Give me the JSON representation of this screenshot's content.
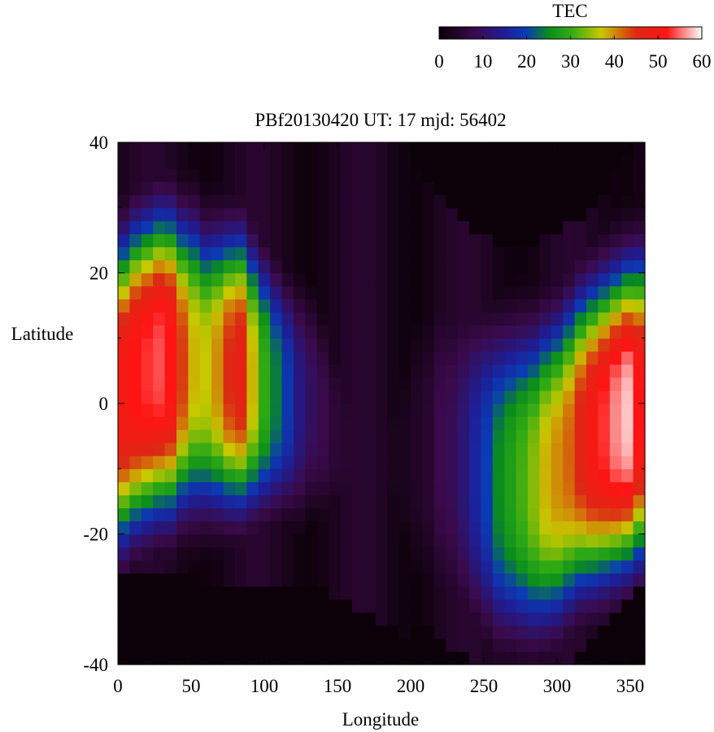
{
  "chart_data": {
    "type": "heatmap",
    "title": "PBf20130420  UT: 17  mjd: 56402",
    "xlabel": "Longitude",
    "ylabel": "Latitude",
    "xlim": [
      0,
      360
    ],
    "ylim": [
      -40,
      40
    ],
    "x_ticks": [
      "0",
      "50",
      "100",
      "150",
      "200",
      "250",
      "300",
      "350"
    ],
    "y_ticks": [
      "40",
      "20",
      "0",
      "-20",
      "-40"
    ],
    "colorbar": {
      "label": "TEC",
      "range": [
        0,
        60
      ],
      "ticks": [
        "0",
        "10",
        "20",
        "30",
        "40",
        "50",
        "60"
      ],
      "stops": [
        [
          0,
          "#0a0005"
        ],
        [
          8,
          "#3a0a4a"
        ],
        [
          15,
          "#1e1e96"
        ],
        [
          20,
          "#0a3cb4"
        ],
        [
          25,
          "#0a8c1e"
        ],
        [
          30,
          "#2faa14"
        ],
        [
          37,
          "#c8c800"
        ],
        [
          45,
          "#dc2814"
        ],
        [
          52,
          "#ff1414"
        ],
        [
          60,
          "#ffffff"
        ]
      ]
    },
    "grid": {
      "lon_step": 8,
      "lat_step": 2,
      "lon_start": 0,
      "lat_start": -40
    },
    "profiles": {
      "lon": [
        0,
        8,
        16,
        24,
        32,
        40,
        48,
        56,
        64,
        72,
        80,
        88,
        96,
        104,
        112,
        120,
        128,
        136,
        144,
        152,
        160,
        168,
        176,
        184,
        192,
        200,
        208,
        216,
        224,
        232,
        240,
        248,
        256,
        264,
        272,
        280,
        288,
        296,
        304,
        312,
        320,
        328,
        336,
        344,
        352
      ],
      "peak": [
        50,
        52,
        53,
        54,
        52,
        44,
        38,
        37,
        40,
        45,
        47,
        38,
        30,
        24,
        19,
        13,
        10,
        8,
        6,
        5,
        4,
        4,
        3,
        3,
        3,
        4,
        5,
        8,
        9,
        12,
        16,
        20,
        25,
        28,
        31,
        34,
        38,
        40,
        42,
        46,
        50,
        53,
        56,
        58,
        52
      ],
      "center": [
        2,
        4,
        5,
        6,
        6,
        6,
        6,
        5,
        5,
        5,
        5,
        4,
        3,
        2,
        1,
        0,
        0,
        -2,
        -4,
        -6,
        -7,
        -7,
        -8,
        -8,
        -8,
        -7,
        -7,
        -7,
        -8,
        -9,
        -10,
        -11,
        -12,
        -12,
        -12,
        -12,
        -11,
        -10,
        -8,
        -6,
        -5,
        -4,
        -3,
        -2,
        -1
      ],
      "halfwidth": [
        22,
        22,
        22,
        22,
        22,
        21,
        21,
        20,
        20,
        20,
        20,
        19,
        18,
        17,
        16,
        16,
        15,
        14,
        12,
        10,
        8,
        8,
        8,
        10,
        14,
        18,
        20,
        22,
        22,
        22,
        22,
        22,
        22,
        22,
        22,
        22,
        22,
        22,
        22,
        22,
        22,
        22,
        22,
        22,
        22
      ],
      "north_floor": [
        40,
        40,
        40,
        40,
        40,
        40,
        40,
        40,
        40,
        40,
        40,
        40,
        40,
        40,
        40,
        40,
        40,
        40,
        40,
        40,
        40,
        40,
        40,
        40,
        40,
        36,
        34,
        32,
        30,
        28,
        26,
        25,
        24,
        24,
        24,
        24,
        25,
        26,
        27,
        28,
        30,
        32,
        35,
        38,
        39
      ],
      "south_floor": [
        -26,
        -25,
        -25,
        -25,
        -26,
        -26,
        -26,
        -27,
        -27,
        -28,
        -28,
        -28,
        -28,
        -28,
        -28,
        -28,
        -28,
        -28,
        -29,
        -30,
        -31,
        -32,
        -33,
        -34,
        -35,
        -34,
        -34,
        -36,
        -37,
        -38,
        -39,
        -40,
        -40,
        -40,
        -40,
        -40,
        -40,
        -40,
        -39,
        -37,
        -35,
        -33,
        -32,
        -30,
        -28
      ]
    }
  }
}
